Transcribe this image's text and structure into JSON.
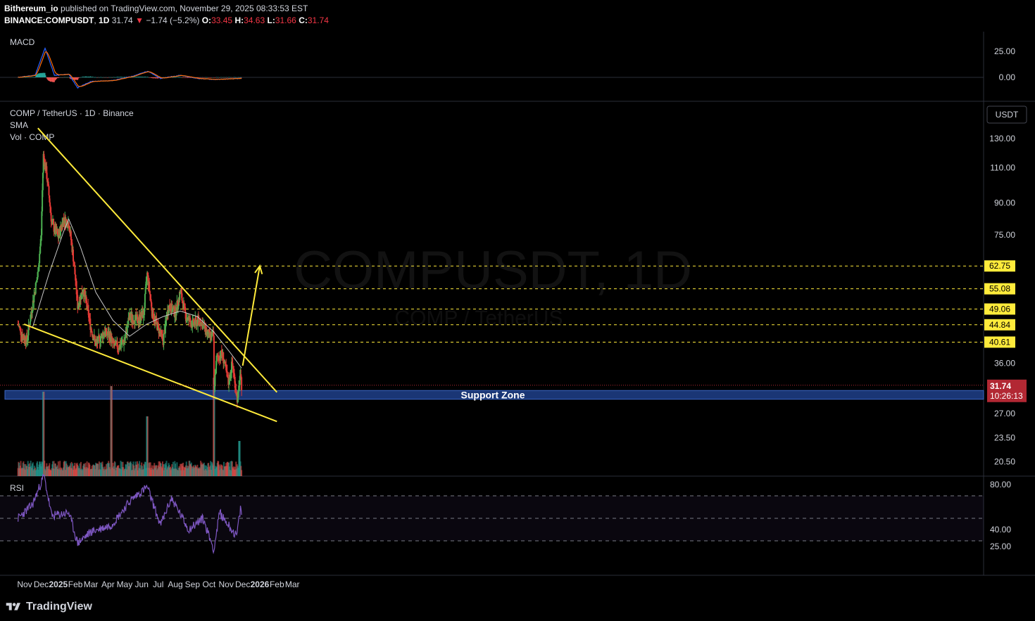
{
  "header": {
    "publisher": "Bithereum_io",
    "published_text": " published on TradingView.com, November 29, 2025 08:33:53 EST",
    "symbol": "BINANCE:COMPUSDT",
    "interval": "1D",
    "last": "31.74",
    "change_arrow": "▼",
    "change": "−1.74 (−5.2%)",
    "o_label": "O:",
    "o": "33.45",
    "h_label": "H:",
    "h": "34.63",
    "l_label": "L:",
    "l": "31.66",
    "c_label": "C:",
    "c": "31.74"
  },
  "panes": {
    "macd_label": "MACD",
    "main_title": "COMP / TetherUS · 1D · Binance",
    "sma_label": "SMA",
    "vol_label": "Vol · COMP",
    "rsi_label": "RSI",
    "currency": "USDT",
    "watermark": "COMPUSDT, 1D",
    "watermark_sub": "COMP / TetherUS"
  },
  "footer": {
    "brand": "TradingView"
  },
  "colors": {
    "up": "#26a69a",
    "down": "#ef5350",
    "candle_up": "#4caf50",
    "candle_down": "#e53935",
    "trendline": "#ffeb3b",
    "level": "#ffeb3b",
    "support_zone": "#1e3f8a",
    "sma": "#c8c8c8",
    "macd": "#2962ff",
    "signal": "#ff6d00",
    "rsi": "#7e57c2",
    "price_tag": "#b22833"
  },
  "chart_data": [
    {
      "type": "candlestick",
      "pane": "price",
      "scale": "log",
      "x_ticks": [
        "Nov",
        "Dec",
        "2025",
        "Feb",
        "Mar",
        "Apr",
        "May",
        "Jun",
        "Jul",
        "Aug",
        "Sep",
        "Oct",
        "Nov",
        "Dec",
        "2026",
        "Feb",
        "Mar"
      ],
      "y_ticks": [
        "130.00",
        "110.00",
        "90.00",
        "75.00",
        "36.00",
        "27.00",
        "23.50",
        "20.50"
      ],
      "horizontal_levels": [
        "62.75",
        "55.08",
        "49.06",
        "44.84",
        "40.61"
      ],
      "last_price": "31.74",
      "countdown": "10:26:13",
      "zone": {
        "label": "Support Zone",
        "from": 29.3,
        "to": 30.8
      },
      "close_path": [
        [
          "2024-10-20",
          45
        ],
        [
          "2024-10-28",
          42
        ],
        [
          "2024-11-05",
          41
        ],
        [
          "2024-11-15",
          50
        ],
        [
          "2024-11-25",
          60
        ],
        [
          "2024-12-01",
          75
        ],
        [
          "2024-12-05",
          118
        ],
        [
          "2024-12-10",
          108
        ],
        [
          "2024-12-20",
          80
        ],
        [
          "2025-01-01",
          74
        ],
        [
          "2025-01-10",
          82
        ],
        [
          "2025-01-20",
          80
        ],
        [
          "2025-01-28",
          66
        ],
        [
          "2025-02-05",
          50
        ],
        [
          "2025-02-15",
          55
        ],
        [
          "2025-03-01",
          44
        ],
        [
          "2025-03-10",
          40
        ],
        [
          "2025-03-25",
          43
        ],
        [
          "2025-04-05",
          42
        ],
        [
          "2025-04-10",
          40
        ],
        [
          "2025-04-20",
          39.5
        ],
        [
          "2025-05-01",
          41
        ],
        [
          "2025-05-10",
          47
        ],
        [
          "2025-05-25",
          46
        ],
        [
          "2025-06-05",
          48
        ],
        [
          "2025-06-11",
          60
        ],
        [
          "2025-06-20",
          48
        ],
        [
          "2025-07-01",
          44
        ],
        [
          "2025-07-10",
          41
        ],
        [
          "2025-07-20",
          50
        ],
        [
          "2025-08-01",
          48
        ],
        [
          "2025-08-10",
          54
        ],
        [
          "2025-08-20",
          47
        ],
        [
          "2025-09-01",
          45
        ],
        [
          "2025-09-15",
          46
        ],
        [
          "2025-10-01",
          42
        ],
        [
          "2025-10-09",
          42
        ],
        [
          "2025-10-10",
          31
        ],
        [
          "2025-10-15",
          37
        ],
        [
          "2025-10-25",
          38
        ],
        [
          "2025-11-05",
          32
        ],
        [
          "2025-11-12",
          36
        ],
        [
          "2025-11-20",
          30
        ],
        [
          "2025-11-22",
          29
        ],
        [
          "2025-11-26",
          33.5
        ],
        [
          "2025-11-29",
          31.74
        ]
      ],
      "sma_path": [
        [
          "2024-11-15",
          44
        ],
        [
          "2024-12-15",
          60
        ],
        [
          "2025-01-10",
          76
        ],
        [
          "2025-01-20",
          82
        ],
        [
          "2025-02-10",
          70
        ],
        [
          "2025-03-10",
          54
        ],
        [
          "2025-04-10",
          46
        ],
        [
          "2025-05-10",
          42
        ],
        [
          "2025-06-10",
          45
        ],
        [
          "2025-07-10",
          47
        ],
        [
          "2025-08-10",
          48.5
        ],
        [
          "2025-09-10",
          47
        ],
        [
          "2025-10-10",
          43
        ],
        [
          "2025-11-10",
          38
        ],
        [
          "2025-11-29",
          35
        ]
      ],
      "trendlines": [
        {
          "from": [
            "2024-11-25",
            138
          ],
          "to": [
            "2026-02-01",
            30.5
          ]
        },
        {
          "from": [
            "2024-10-31",
            45
          ],
          "to": [
            "2026-02-01",
            25.8
          ]
        }
      ],
      "projection_arrow": {
        "from": [
          "2025-12-01",
          35.5
        ],
        "to": [
          "2026-01-01",
          62.75
        ]
      },
      "volume_spikes": [
        [
          "2024-12-05",
          120
        ],
        [
          "2025-04-07",
          128
        ],
        [
          "2025-06-11",
          85
        ],
        [
          "2025-10-10",
          140
        ],
        [
          "2025-11-25",
          50
        ]
      ]
    },
    {
      "type": "line",
      "pane": "macd",
      "name": "MACD",
      "y_ticks": [
        "25.00",
        "0.00"
      ],
      "macd_path": [
        [
          "2024-10-20",
          0
        ],
        [
          "2024-11-20",
          2
        ],
        [
          "2024-12-08",
          28
        ],
        [
          "2024-12-25",
          2
        ],
        [
          "2025-01-20",
          3
        ],
        [
          "2025-02-05",
          -10
        ],
        [
          "2025-03-01",
          -4
        ],
        [
          "2025-04-10",
          -3
        ],
        [
          "2025-05-15",
          1
        ],
        [
          "2025-06-12",
          6
        ],
        [
          "2025-07-05",
          -1
        ],
        [
          "2025-08-10",
          2
        ],
        [
          "2025-09-10",
          -1
        ],
        [
          "2025-10-12",
          -2
        ],
        [
          "2025-11-29",
          -1
        ]
      ]
    },
    {
      "type": "line",
      "pane": "rsi",
      "name": "RSI",
      "y_ticks": [
        "80.00",
        "40.00",
        "25.00"
      ],
      "bands": [
        70,
        50,
        30
      ],
      "rsi_path": [
        [
          "2024-10-20",
          50
        ],
        [
          "2024-11-15",
          62
        ],
        [
          "2024-12-06",
          88
        ],
        [
          "2024-12-20",
          52
        ],
        [
          "2025-01-20",
          55
        ],
        [
          "2025-02-05",
          28
        ],
        [
          "2025-03-01",
          38
        ],
        [
          "2025-04-07",
          44
        ],
        [
          "2025-05-12",
          66
        ],
        [
          "2025-06-11",
          78
        ],
        [
          "2025-07-05",
          44
        ],
        [
          "2025-07-25",
          68
        ],
        [
          "2025-08-25",
          40
        ],
        [
          "2025-09-20",
          50
        ],
        [
          "2025-10-10",
          22
        ],
        [
          "2025-10-20",
          55
        ],
        [
          "2025-11-20",
          34
        ],
        [
          "2025-11-27",
          58
        ],
        [
          "2025-11-29",
          55
        ]
      ]
    }
  ]
}
